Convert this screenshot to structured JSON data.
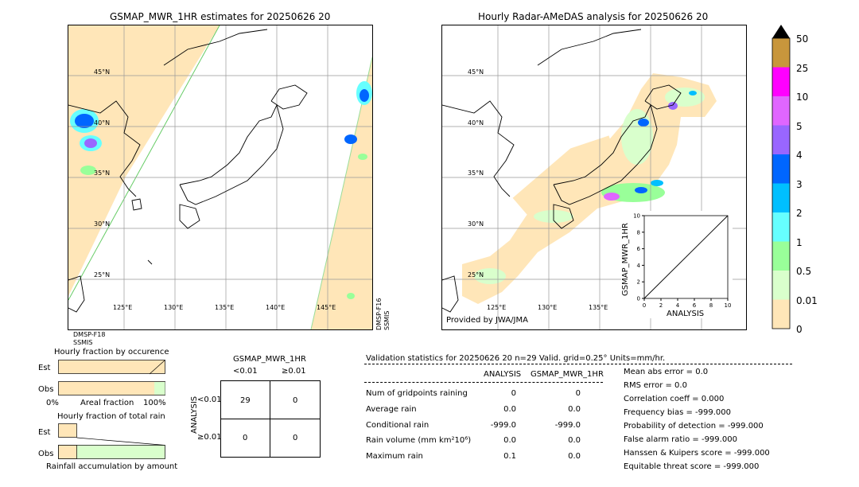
{
  "left_map": {
    "title": "GSMAP_MWR_1HR estimates for 20250626 20",
    "lat_labels": [
      "45°N",
      "40°N",
      "35°N",
      "30°N",
      "25°N"
    ],
    "lon_labels": [
      "125°E",
      "130°E",
      "135°E",
      "140°E",
      "145°E"
    ],
    "sat_left": "DMSP-F18",
    "sat_left2": "SSMIS",
    "sat_right": "DMSP-F16",
    "sat_right2": "SSMIS"
  },
  "right_map": {
    "title": "Hourly Radar-AMeDAS analysis for 20250626 20",
    "lat_labels": [
      "45°N",
      "40°N",
      "35°N",
      "30°N",
      "25°N"
    ],
    "lon_labels": [
      "125°E",
      "130°E",
      "135°E"
    ],
    "credit": "Provided by JWA/JMA"
  },
  "colorbar": {
    "labels": [
      "50",
      "25",
      "10",
      "5",
      "4",
      "3",
      "2",
      "1",
      "0.5",
      "0.01",
      "0"
    ],
    "colors": [
      "#c8963c",
      "#ff00ff",
      "#e066ff",
      "#9966ff",
      "#0066ff",
      "#00bfff",
      "#66ffff",
      "#99ff99",
      "#d9ffcc",
      "#ffe6b8"
    ],
    "over_color": "#000000"
  },
  "chart_data": [
    {
      "type": "scatter",
      "title": "",
      "xlabel": "ANALYSIS",
      "ylabel": "GSMAP_MWR_1HR",
      "xlim": [
        0,
        10
      ],
      "ylim": [
        0,
        10
      ],
      "xticks": [
        "0",
        "2",
        "4",
        "6",
        "8",
        "10"
      ],
      "yticks": [
        "0",
        "2",
        "4",
        "6",
        "8",
        "10"
      ],
      "points": []
    },
    {
      "type": "bar",
      "title": "Hourly fraction by occurence",
      "categories": [
        "Est",
        "Obs"
      ],
      "values": [
        1.0,
        0.0
      ],
      "xlabel": "Areal fraction",
      "xtick_left": "0%",
      "xtick_right": "100%",
      "obs_green_fraction": 0.1
    },
    {
      "type": "bar",
      "title": "Hourly fraction of total rain",
      "categories": [
        "Est",
        "Obs"
      ],
      "xlabel": "Rainfall accumulation by amount"
    }
  ],
  "contingency": {
    "title": "GSMAP_MWR_1HR",
    "col_headers": [
      "<0.01",
      "≥0.01"
    ],
    "row_label": "ANALYSIS",
    "row_headers": [
      "<0.01",
      "≥0.01"
    ],
    "cells": [
      [
        "29",
        "0"
      ],
      [
        "0",
        "0"
      ]
    ]
  },
  "validation": {
    "header": "Validation statistics for 20250626 20  n=29 Valid. grid=0.25° Units=mm/hr.",
    "col1": "ANALYSIS",
    "col2": "GSMAP_MWR_1HR",
    "rows": [
      {
        "label": "Num of gridpoints raining",
        "a": "0",
        "b": "0"
      },
      {
        "label": "Average rain",
        "a": "0.0",
        "b": "0.0"
      },
      {
        "label": "Conditional rain",
        "a": "-999.0",
        "b": "-999.0"
      },
      {
        "label": "Rain volume (mm km²10⁶)",
        "a": "0.0",
        "b": "0.0"
      },
      {
        "label": "Maximum rain",
        "a": "0.1",
        "b": "0.0"
      }
    ],
    "scores": [
      "Mean abs error =    0.0",
      "RMS error =    0.0",
      "Correlation coeff =  0.000",
      "Frequency bias = -999.000",
      "Probability of detection = -999.000",
      "False alarm ratio = -999.000",
      "Hanssen & Kuipers score = -999.000",
      "Equitable threat score = -999.000"
    ]
  }
}
